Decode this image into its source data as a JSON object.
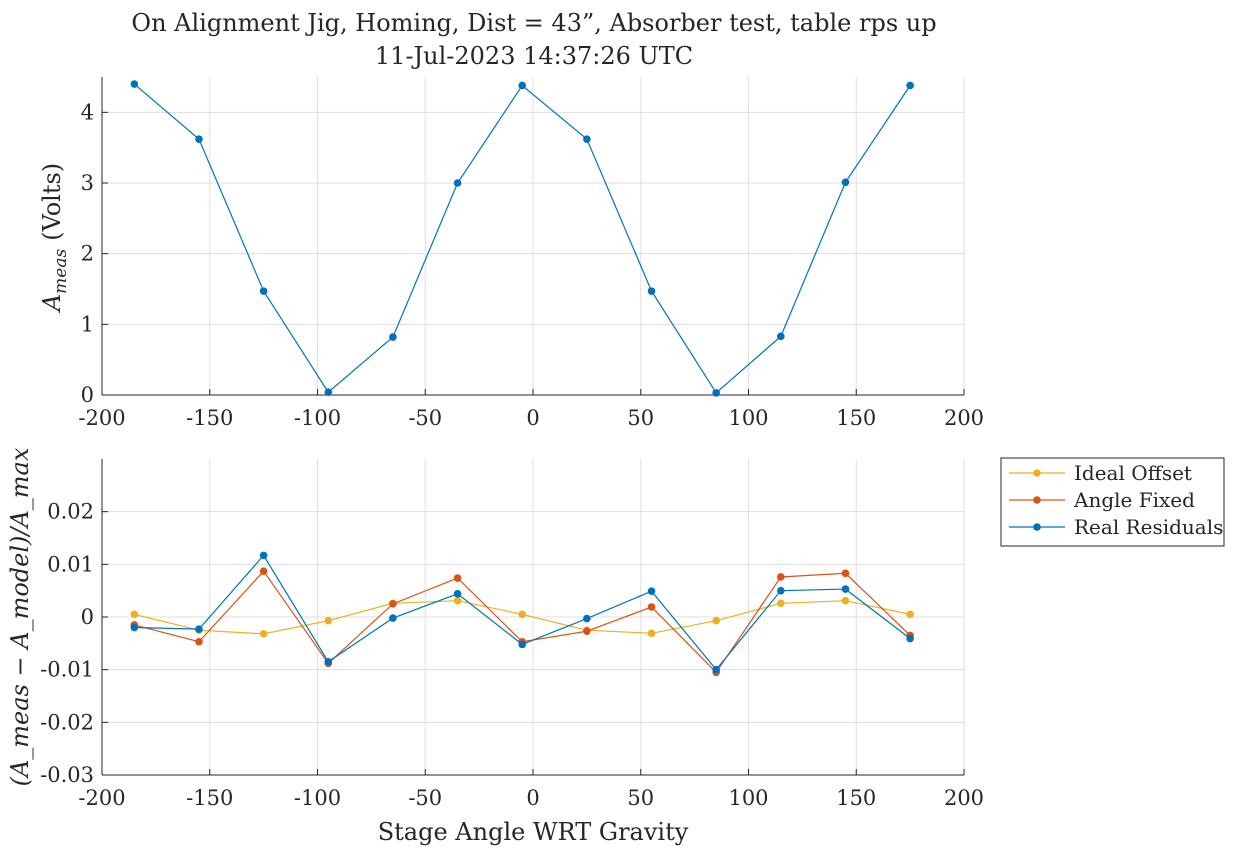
{
  "figure": {
    "title_line1": "On Alignment Jig, Homing, Dist = 43”, Absorber test, table rps up",
    "title_line2": "11-Jul-2023 14:37:26 UTC"
  },
  "chart_data": [
    {
      "type": "line",
      "ylabel": "A_meas (Volts)",
      "ylabel_parts": {
        "main": "A",
        "subscript": "meas",
        "suffix": "(Volts)"
      },
      "xlim": [
        -200,
        200
      ],
      "ylim": [
        0,
        4.5
      ],
      "xticks": [
        -200,
        -150,
        -100,
        -50,
        0,
        50,
        100,
        150,
        200
      ],
      "yticks": [
        0,
        1,
        2,
        3,
        4
      ],
      "grid": true,
      "x": [
        -185,
        -155,
        -125,
        -95,
        -65,
        -35,
        -5,
        25,
        55,
        85,
        115,
        145,
        175
      ],
      "series": [
        {
          "color": "#0072BD",
          "values": [
            4.4,
            3.62,
            1.47,
            0.04,
            0.82,
            3.0,
            4.38,
            3.62,
            1.47,
            0.03,
            0.83,
            3.01,
            4.38
          ]
        }
      ]
    },
    {
      "type": "line",
      "xlabel": "Stage Angle WRT Gravity",
      "ylabel": "(A_meas − A_model)/A_max",
      "xlim": [
        -200,
        200
      ],
      "ylim": [
        -0.03,
        0.03
      ],
      "xticks": [
        -200,
        -150,
        -100,
        -50,
        0,
        50,
        100,
        150,
        200
      ],
      "yticks": [
        -0.03,
        -0.02,
        -0.01,
        0,
        0.01,
        0.02
      ],
      "grid": true,
      "legend_position": "outside-top-right",
      "x": [
        -185,
        -155,
        -125,
        -95,
        -65,
        -35,
        -5,
        25,
        55,
        85,
        115,
        145,
        175
      ],
      "series": [
        {
          "name": "Ideal Offset",
          "color": "#EDB120",
          "values": [
            0.0005,
            -0.0025,
            -0.0032,
            -0.0007,
            0.0026,
            0.0031,
            0.0005,
            -0.0025,
            -0.0031,
            -0.0007,
            0.0026,
            0.0031,
            0.0005
          ]
        },
        {
          "name": "Angle Fixed",
          "color": "#D95319",
          "values": [
            -0.0015,
            -0.0047,
            0.0087,
            -0.0088,
            0.0025,
            0.0074,
            -0.0047,
            -0.0027,
            0.0019,
            -0.0105,
            0.0076,
            0.0083,
            -0.0035
          ]
        },
        {
          "name": "Real Residuals",
          "color": "#0072BD",
          "values": [
            -0.002,
            -0.0023,
            0.0117,
            -0.0085,
            -0.0002,
            0.0044,
            -0.0052,
            -0.0003,
            0.0049,
            -0.01,
            0.005,
            0.0053,
            -0.0041
          ]
        }
      ]
    }
  ]
}
